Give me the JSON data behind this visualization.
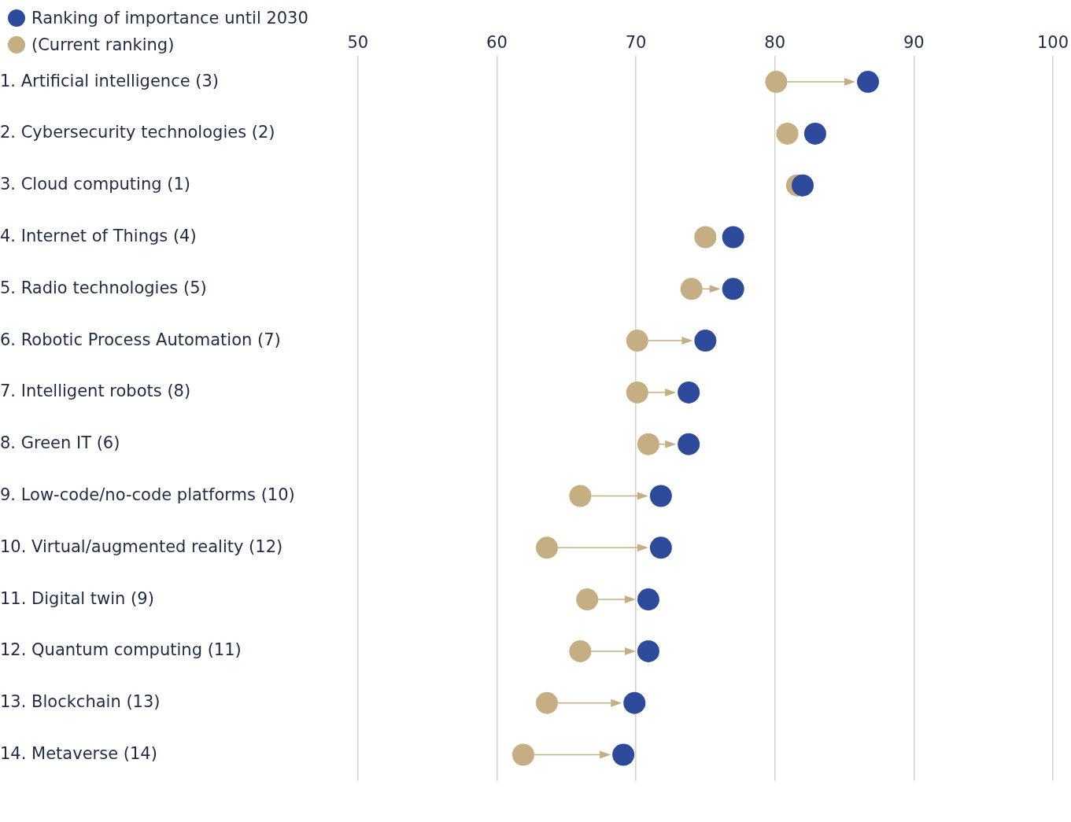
{
  "chart_data": {
    "type": "scatter",
    "categories": [
      "1. Artificial intelligence (3)",
      "2. Cybersecurity technologies (2)",
      "3. Cloud computing (1)",
      "4. Internet of Things (4)",
      "5. Radio technologies (5)",
      "6. Robotic Process Automation (7)",
      "7. Intelligent robots (8)",
      "8. Green IT (6)",
      "9. Low-code/no-code platforms (10)",
      "10. Virtual/augmented reality (12)",
      "11. Digital twin (9)",
      "12. Quantum computing (11)",
      "13. Blockchain (13)",
      "14. Metaverse (14)"
    ],
    "series": [
      {
        "name": "(Current ranking)",
        "color": "#c4ae82",
        "values": [
          80.1,
          80.9,
          81.6,
          75.0,
          74.0,
          70.1,
          70.1,
          70.9,
          66.0,
          63.6,
          66.5,
          66.0,
          63.6,
          61.9
        ]
      },
      {
        "name": "Ranking of importance until 2030",
        "color": "#2e4a9b",
        "values": [
          86.7,
          82.9,
          82.0,
          77.0,
          77.0,
          75.0,
          73.8,
          73.8,
          71.8,
          71.8,
          70.9,
          70.9,
          69.9,
          69.1
        ]
      }
    ],
    "orientation": "horizontal",
    "xlim": [
      50,
      100
    ],
    "xticks": [
      50,
      60,
      70,
      80,
      90,
      100
    ],
    "grid": "x",
    "legend": "top left",
    "marker": "circle"
  }
}
